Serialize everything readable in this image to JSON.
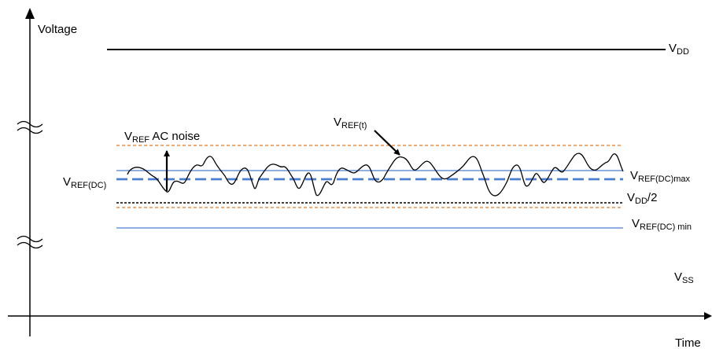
{
  "axes": {
    "y_label": "Voltage",
    "x_label": "Time"
  },
  "labels": {
    "vdd_main": "V",
    "vdd_sub": "DD",
    "vss_main": "V",
    "vss_sub": "SS",
    "vref_ac_noise_v": "V",
    "vref_ac_noise_sub": "REF",
    "vref_ac_noise_rest": " AC noise",
    "vref_t_main": "V",
    "vref_t_sub": "REF(t)",
    "vref_dc_main": "V",
    "vref_dc_sub": "REF(DC)",
    "vref_dc_max_main": "V",
    "vref_dc_max_sub": "REF(DC)max",
    "vdd_half_main": "V",
    "vdd_half_sub": "DD",
    "vdd_half_rest": "/2",
    "vref_dc_min_main": "V",
    "vref_dc_min_sub": "REF(DC) min"
  },
  "colors": {
    "axis": "#000000",
    "signal": "#000000",
    "dc_levels": "#4a7fd0",
    "noise_bounds": "#e87722"
  },
  "icons": {
    "axis_break": "double-tilde-icon",
    "pointer": "arrow-icon"
  }
}
